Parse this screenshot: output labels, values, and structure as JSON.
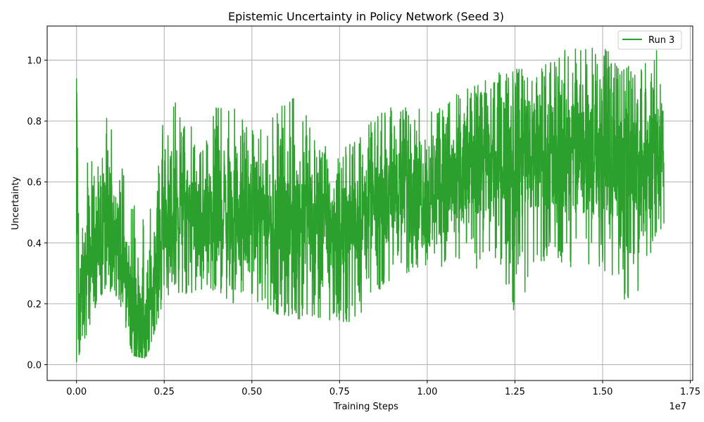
{
  "chart_data": {
    "type": "line",
    "title": "Epistemic Uncertainty in Policy Network (Seed 3)",
    "xlabel": "Training Steps",
    "ylabel": "Uncertainty",
    "x_offset_label": "1e7",
    "xlim": [
      -0.0837,
      1.757
    ],
    "ylim": [
      -0.052,
      1.112
    ],
    "x_unit_scale": 10000000,
    "xticks": [
      0.0,
      0.25,
      0.5,
      0.75,
      1.0,
      1.25,
      1.5,
      1.75
    ],
    "xtick_labels": [
      "0.00",
      "0.25",
      "0.50",
      "0.75",
      "1.00",
      "1.25",
      "1.50",
      "1.75"
    ],
    "yticks": [
      0.0,
      0.2,
      0.4,
      0.6,
      0.8,
      1.0
    ],
    "ytick_labels": [
      "0.0",
      "0.2",
      "0.4",
      "0.6",
      "0.8",
      "1.0"
    ],
    "grid": true,
    "legend_position": "top-right",
    "colors": {
      "run3": "#2ca02c",
      "grid": "#b0b0b0",
      "axes": "#000000"
    },
    "series": [
      {
        "name": "Run 3",
        "color": "#2ca02c",
        "x": [
          0.0,
          0.005,
          0.01,
          0.02,
          0.03,
          0.05,
          0.08,
          0.12,
          0.16,
          0.2,
          0.25,
          0.3,
          0.35,
          0.4,
          0.45,
          0.5,
          0.55,
          0.6,
          0.65,
          0.7,
          0.75,
          0.8,
          0.85,
          0.9,
          0.95,
          1.0,
          1.05,
          1.1,
          1.15,
          1.2,
          1.25,
          1.3,
          1.35,
          1.4,
          1.45,
          1.5,
          1.55,
          1.6,
          1.65,
          1.675
        ],
        "mean": [
          0.94,
          0.15,
          0.2,
          0.25,
          0.3,
          0.38,
          0.45,
          0.42,
          0.18,
          0.13,
          0.5,
          0.52,
          0.45,
          0.5,
          0.5,
          0.5,
          0.48,
          0.45,
          0.48,
          0.46,
          0.45,
          0.47,
          0.52,
          0.58,
          0.6,
          0.56,
          0.58,
          0.62,
          0.68,
          0.65,
          0.68,
          0.7,
          0.7,
          0.68,
          0.7,
          0.69,
          0.66,
          0.65,
          0.68,
          0.7
        ],
        "low": [
          0.01,
          0.0,
          0.05,
          0.08,
          0.1,
          0.18,
          0.25,
          0.22,
          0.03,
          0.02,
          0.22,
          0.24,
          0.2,
          0.24,
          0.2,
          0.22,
          0.18,
          0.15,
          0.15,
          0.14,
          0.13,
          0.15,
          0.22,
          0.28,
          0.3,
          0.33,
          0.32,
          0.3,
          0.32,
          0.35,
          0.15,
          0.3,
          0.36,
          0.3,
          0.32,
          0.32,
          0.2,
          0.22,
          0.42,
          0.46
        ],
        "high": [
          0.94,
          0.53,
          0.45,
          0.55,
          0.66,
          0.72,
          0.88,
          0.73,
          0.54,
          0.48,
          0.82,
          0.89,
          0.7,
          0.85,
          0.85,
          0.77,
          0.8,
          0.89,
          0.86,
          0.72,
          0.7,
          0.74,
          0.81,
          0.85,
          0.85,
          0.83,
          0.86,
          0.9,
          0.92,
          0.96,
          0.97,
          0.97,
          0.99,
          1.04,
          1.05,
          1.06,
          0.96,
          1.0,
          1.04,
          1.02
        ]
      }
    ]
  }
}
